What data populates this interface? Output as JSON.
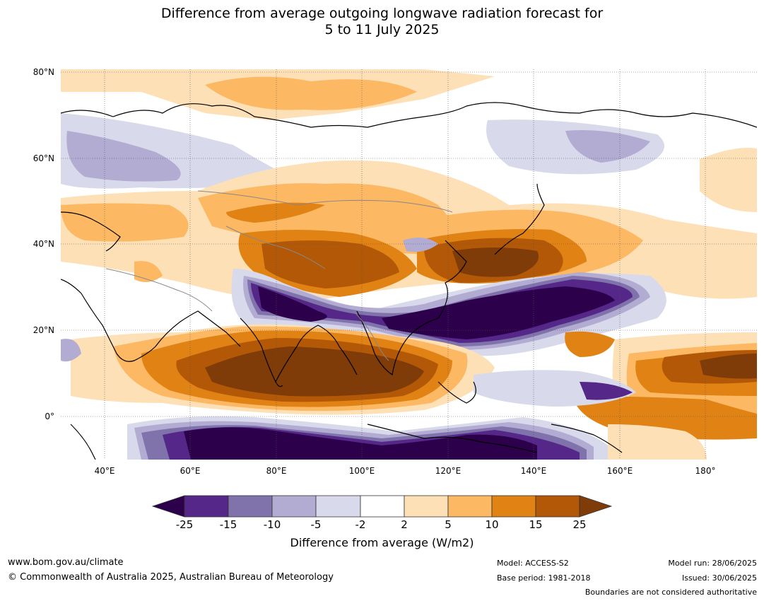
{
  "title": {
    "line1": "Difference from average outgoing longwave radiation forecast for",
    "line2": "5 to 11 July 2025"
  },
  "map": {
    "lat_labels": [
      "80°N",
      "60°N",
      "40°N",
      "20°N",
      "0°"
    ],
    "lon_labels": [
      "40°E",
      "60°E",
      "80°E",
      "100°E",
      "120°E",
      "140°E",
      "160°E",
      "180°"
    ],
    "extent": {
      "lon": [
        30,
        192
      ],
      "lat": [
        -10,
        80
      ]
    }
  },
  "colorbar": {
    "ticks": [
      "-25",
      "-15",
      "-10",
      "-5",
      "-2",
      "2",
      "5",
      "10",
      "15",
      "25"
    ],
    "colors": [
      "#2d004b",
      "#542788",
      "#8073ac",
      "#b2abd2",
      "#d8daeb",
      "#ffffff",
      "#fee0b6",
      "#fdb863",
      "#e08214",
      "#b35806",
      "#7f3b08"
    ],
    "label": "Difference from average (W/m2)"
  },
  "footer": {
    "website": "www.bom.gov.au/climate",
    "copyright": "© Commonwealth of Australia 2025, Australian Bureau of Meteorology",
    "model": "Model: ACCESS-S2",
    "base_period": "Base period: 1981-2018",
    "model_run": "Model run: 28/06/2025",
    "issued": "Issued: 30/06/2025",
    "disclaimer": "Boundaries are not considered authoritative"
  }
}
